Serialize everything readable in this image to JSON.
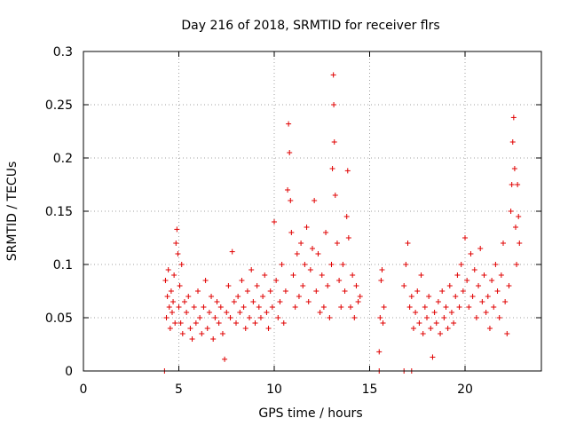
{
  "chart_data": {
    "type": "scatter",
    "title": "Day 216 of 2018, SRMTID for receiver flrs",
    "xlabel": "GPS time / hours",
    "ylabel": "SRMTID / TECUs",
    "xlim": [
      0,
      24
    ],
    "ylim": [
      0,
      0.3
    ],
    "x_ticks": [
      0,
      5,
      10,
      15,
      20
    ],
    "y_ticks": [
      0,
      0.05,
      0.1,
      0.15,
      0.2,
      0.25,
      0.3
    ],
    "x_tick_labels": [
      "0",
      "5",
      "10",
      "15",
      "20"
    ],
    "y_tick_labels": [
      "0",
      "0.05",
      "0.1",
      "0.15",
      "0.2",
      "0.25",
      "0.3"
    ],
    "grid": true,
    "marker": "plus",
    "marker_color": "#e00000",
    "series": [
      {
        "points": [
          [
            4.3,
            0.085
          ],
          [
            4.35,
            0.05
          ],
          [
            4.4,
            0.07
          ],
          [
            4.45,
            0.095
          ],
          [
            4.5,
            0.06
          ],
          [
            4.55,
            0.04
          ],
          [
            4.6,
            0.075
          ],
          [
            4.65,
            0.055
          ],
          [
            4.7,
            0.065
          ],
          [
            4.75,
            0.09
          ],
          [
            4.8,
            0.045
          ],
          [
            4.85,
            0.12
          ],
          [
            4.9,
            0.133
          ],
          [
            4.95,
            0.11
          ],
          [
            5.0,
            0.06
          ],
          [
            5.05,
            0.08
          ],
          [
            5.1,
            0.045
          ],
          [
            5.15,
            0.1
          ],
          [
            5.2,
            0.035
          ],
          [
            5.3,
            0.065
          ],
          [
            5.4,
            0.055
          ],
          [
            5.5,
            0.07
          ],
          [
            5.6,
            0.04
          ],
          [
            5.7,
            0.03
          ],
          [
            5.8,
            0.06
          ],
          [
            5.9,
            0.045
          ],
          [
            6.0,
            0.075
          ],
          [
            6.1,
            0.05
          ],
          [
            6.2,
            0.035
          ],
          [
            6.3,
            0.06
          ],
          [
            6.4,
            0.085
          ],
          [
            6.5,
            0.04
          ],
          [
            6.6,
            0.055
          ],
          [
            6.7,
            0.07
          ],
          [
            6.8,
            0.03
          ],
          [
            6.9,
            0.05
          ],
          [
            7.0,
            0.065
          ],
          [
            7.1,
            0.045
          ],
          [
            7.2,
            0.06
          ],
          [
            7.3,
            0.035
          ],
          [
            7.4,
            0.011
          ],
          [
            7.5,
            0.055
          ],
          [
            7.6,
            0.08
          ],
          [
            7.7,
            0.05
          ],
          [
            7.8,
            0.112
          ],
          [
            7.9,
            0.065
          ],
          [
            8.0,
            0.045
          ],
          [
            8.1,
            0.07
          ],
          [
            8.2,
            0.055
          ],
          [
            8.3,
            0.085
          ],
          [
            8.4,
            0.06
          ],
          [
            8.5,
            0.04
          ],
          [
            8.6,
            0.075
          ],
          [
            8.7,
            0.05
          ],
          [
            8.8,
            0.095
          ],
          [
            8.9,
            0.065
          ],
          [
            9.0,
            0.045
          ],
          [
            9.1,
            0.08
          ],
          [
            9.2,
            0.06
          ],
          [
            9.3,
            0.05
          ],
          [
            9.4,
            0.07
          ],
          [
            9.5,
            0.09
          ],
          [
            9.6,
            0.055
          ],
          [
            9.7,
            0.04
          ],
          [
            9.8,
            0.075
          ],
          [
            9.9,
            0.06
          ],
          [
            10.0,
            0.14
          ],
          [
            10.1,
            0.085
          ],
          [
            10.2,
            0.05
          ],
          [
            10.3,
            0.065
          ],
          [
            10.4,
            0.1
          ],
          [
            10.5,
            0.045
          ],
          [
            10.6,
            0.075
          ],
          [
            10.7,
            0.17
          ],
          [
            10.75,
            0.232
          ],
          [
            10.8,
            0.205
          ],
          [
            10.85,
            0.16
          ],
          [
            10.9,
            0.13
          ],
          [
            11.0,
            0.09
          ],
          [
            11.1,
            0.06
          ],
          [
            11.2,
            0.11
          ],
          [
            11.3,
            0.07
          ],
          [
            11.4,
            0.12
          ],
          [
            11.5,
            0.08
          ],
          [
            11.6,
            0.1
          ],
          [
            11.7,
            0.135
          ],
          [
            11.8,
            0.065
          ],
          [
            11.9,
            0.095
          ],
          [
            12.0,
            0.115
          ],
          [
            12.1,
            0.16
          ],
          [
            12.2,
            0.075
          ],
          [
            12.3,
            0.11
          ],
          [
            12.4,
            0.055
          ],
          [
            12.5,
            0.09
          ],
          [
            12.6,
            0.06
          ],
          [
            12.7,
            0.13
          ],
          [
            12.8,
            0.08
          ],
          [
            12.9,
            0.05
          ],
          [
            13.0,
            0.1
          ],
          [
            13.05,
            0.19
          ],
          [
            13.1,
            0.278
          ],
          [
            13.12,
            0.25
          ],
          [
            13.15,
            0.215
          ],
          [
            13.2,
            0.165
          ],
          [
            13.3,
            0.12
          ],
          [
            13.4,
            0.085
          ],
          [
            13.5,
            0.06
          ],
          [
            13.6,
            0.1
          ],
          [
            13.7,
            0.075
          ],
          [
            13.8,
            0.145
          ],
          [
            13.85,
            0.188
          ],
          [
            13.9,
            0.125
          ],
          [
            14.0,
            0.06
          ],
          [
            14.1,
            0.09
          ],
          [
            14.2,
            0.05
          ],
          [
            14.3,
            0.08
          ],
          [
            14.4,
            0.065
          ],
          [
            14.5,
            0.07
          ],
          [
            15.5,
            0.018
          ],
          [
            15.55,
            0.05
          ],
          [
            15.6,
            0.085
          ],
          [
            15.65,
            0.095
          ],
          [
            15.7,
            0.045
          ],
          [
            15.75,
            0.06
          ],
          [
            16.8,
            0.08
          ],
          [
            16.9,
            0.1
          ],
          [
            17.0,
            0.12
          ],
          [
            17.1,
            0.06
          ],
          [
            17.2,
            0.07
          ],
          [
            17.3,
            0.04
          ],
          [
            17.4,
            0.055
          ],
          [
            17.5,
            0.075
          ],
          [
            17.6,
            0.045
          ],
          [
            17.7,
            0.09
          ],
          [
            17.8,
            0.035
          ],
          [
            17.9,
            0.06
          ],
          [
            18.0,
            0.05
          ],
          [
            18.1,
            0.07
          ],
          [
            18.2,
            0.04
          ],
          [
            18.3,
            0.013
          ],
          [
            18.4,
            0.055
          ],
          [
            18.5,
            0.045
          ],
          [
            18.6,
            0.065
          ],
          [
            18.7,
            0.035
          ],
          [
            18.8,
            0.075
          ],
          [
            18.9,
            0.05
          ],
          [
            19.0,
            0.06
          ],
          [
            19.1,
            0.04
          ],
          [
            19.2,
            0.08
          ],
          [
            19.3,
            0.055
          ],
          [
            19.4,
            0.045
          ],
          [
            19.5,
            0.07
          ],
          [
            19.6,
            0.09
          ],
          [
            19.7,
            0.06
          ],
          [
            19.8,
            0.1
          ],
          [
            19.9,
            0.075
          ],
          [
            20.0,
            0.125
          ],
          [
            20.1,
            0.085
          ],
          [
            20.2,
            0.06
          ],
          [
            20.3,
            0.11
          ],
          [
            20.4,
            0.07
          ],
          [
            20.5,
            0.095
          ],
          [
            20.6,
            0.05
          ],
          [
            20.7,
            0.08
          ],
          [
            20.8,
            0.115
          ],
          [
            20.9,
            0.065
          ],
          [
            21.0,
            0.09
          ],
          [
            21.1,
            0.055
          ],
          [
            21.2,
            0.07
          ],
          [
            21.3,
            0.04
          ],
          [
            21.4,
            0.085
          ],
          [
            21.5,
            0.06
          ],
          [
            21.6,
            0.1
          ],
          [
            21.7,
            0.075
          ],
          [
            21.8,
            0.05
          ],
          [
            21.9,
            0.09
          ],
          [
            22.0,
            0.12
          ],
          [
            22.1,
            0.065
          ],
          [
            22.2,
            0.035
          ],
          [
            22.3,
            0.08
          ],
          [
            22.4,
            0.15
          ],
          [
            22.45,
            0.175
          ],
          [
            22.5,
            0.215
          ],
          [
            22.55,
            0.238
          ],
          [
            22.6,
            0.19
          ],
          [
            22.65,
            0.135
          ],
          [
            22.7,
            0.1
          ],
          [
            22.75,
            0.175
          ],
          [
            22.8,
            0.145
          ],
          [
            22.85,
            0.12
          ]
        ]
      },
      {
        "points": [
          [
            4.25,
            0.0
          ],
          [
            15.5,
            0.0
          ],
          [
            16.8,
            0.0
          ],
          [
            17.2,
            0.0
          ]
        ]
      }
    ]
  }
}
